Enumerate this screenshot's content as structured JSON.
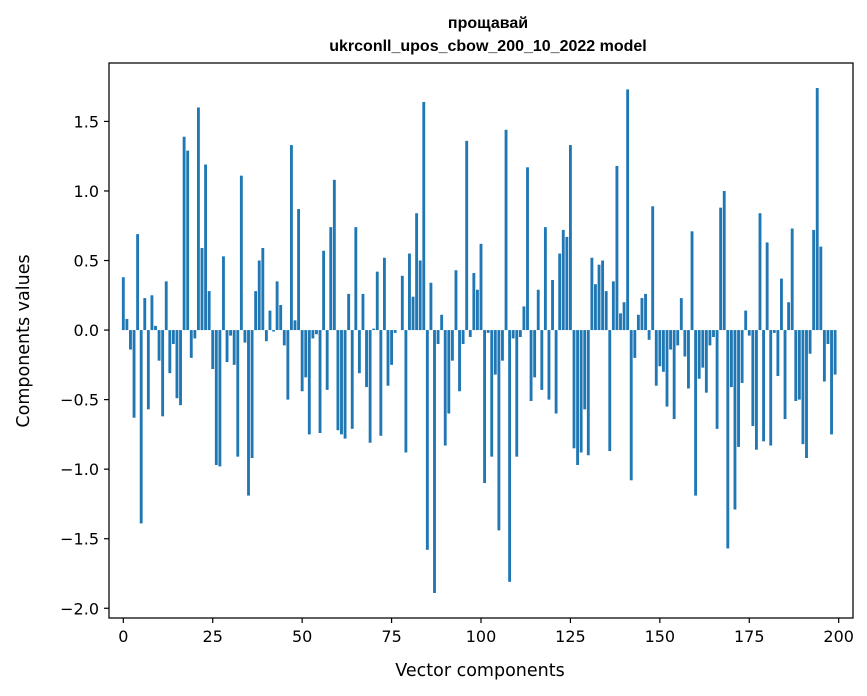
{
  "chart_data": {
    "type": "bar",
    "title": "прощавай",
    "subtitle": "ukrconll_upos_cbow_200_10_2022 model",
    "xlabel": "Vector components",
    "ylabel": "Components values",
    "xlim": [
      -4,
      204
    ],
    "ylim": [
      -2.07,
      1.92
    ],
    "xticks": [
      0,
      25,
      50,
      75,
      100,
      125,
      150,
      175,
      200
    ],
    "yticks": [
      -2.0,
      -1.5,
      -1.0,
      -0.5,
      0.0,
      0.5,
      1.0,
      1.5
    ],
    "ytick_labels": [
      "−2.0",
      "−1.5",
      "−1.0",
      "−0.5",
      "0.0",
      "0.5",
      "1.0",
      "1.5"
    ],
    "bar_color": "#1f77b4",
    "values": [
      0.38,
      0.08,
      -0.14,
      -0.63,
      0.69,
      -1.39,
      0.23,
      -0.57,
      0.25,
      0.03,
      -0.22,
      -0.62,
      0.35,
      -0.31,
      -0.1,
      -0.49,
      -0.54,
      1.39,
      1.29,
      -0.2,
      -0.06,
      1.6,
      0.59,
      1.19,
      0.28,
      -0.28,
      -0.97,
      -0.98,
      0.53,
      -0.23,
      -0.04,
      -0.25,
      -0.91,
      1.11,
      -0.09,
      -1.19,
      -0.92,
      0.28,
      0.5,
      0.59,
      -0.08,
      0.14,
      -0.01,
      0.35,
      0.18,
      -0.11,
      -0.5,
      1.33,
      0.07,
      0.87,
      -0.44,
      -0.34,
      -0.75,
      -0.06,
      -0.03,
      -0.74,
      0.57,
      -0.43,
      0.74,
      1.08,
      -0.72,
      -0.75,
      -0.78,
      0.26,
      -0.71,
      0.74,
      -0.31,
      0.26,
      -0.41,
      -0.81,
      0.01,
      0.42,
      -0.76,
      0.52,
      -0.4,
      -0.25,
      -0.02,
      0.0,
      0.39,
      -0.88,
      0.55,
      0.24,
      0.84,
      0.5,
      1.64,
      -1.58,
      0.34,
      -1.89,
      -0.1,
      0.11,
      -0.83,
      -0.6,
      -0.22,
      0.43,
      -0.44,
      -0.1,
      1.36,
      -0.05,
      0.41,
      0.29,
      0.62,
      -1.1,
      -0.02,
      -0.91,
      -0.32,
      -1.44,
      -0.22,
      1.44,
      -1.81,
      -0.06,
      -0.91,
      -0.05,
      0.17,
      1.17,
      -0.51,
      -0.34,
      0.29,
      -0.43,
      0.74,
      -0.5,
      0.36,
      -0.6,
      0.55,
      0.72,
      0.67,
      1.33,
      -0.85,
      -0.97,
      -0.88,
      -0.57,
      -0.9,
      0.52,
      0.33,
      0.47,
      0.5,
      0.28,
      -0.87,
      0.35,
      1.18,
      0.12,
      0.2,
      1.73,
      -1.08,
      -0.2,
      0.11,
      0.23,
      0.26,
      -0.07,
      0.89,
      -0.4,
      -0.26,
      -0.3,
      -0.55,
      -0.14,
      -0.64,
      -0.11,
      0.23,
      -0.19,
      -0.42,
      0.71,
      -1.19,
      -0.35,
      -0.27,
      -0.45,
      -0.11,
      -0.05,
      -0.71,
      0.88,
      1.0,
      -1.57,
      -0.41,
      -1.29,
      -0.84,
      -0.38,
      0.14,
      -0.04,
      -0.69,
      -0.86,
      0.84,
      -0.8,
      0.63,
      -0.83,
      -0.02,
      -0.33,
      0.37,
      -0.64,
      0.2,
      0.73,
      -0.51,
      -0.5,
      -0.82,
      -0.92,
      -0.17,
      0.72,
      1.74,
      0.6,
      -0.37,
      -0.1,
      -0.75,
      -0.32
    ]
  }
}
